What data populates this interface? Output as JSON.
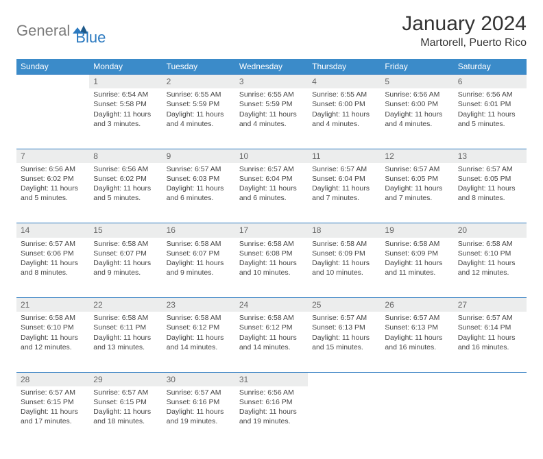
{
  "logo": {
    "text1": "General",
    "text2": "Blue"
  },
  "title": "January 2024",
  "location": "Martorell, Puerto Rico",
  "colors": {
    "header_bg": "#3b8bc9",
    "accent_line": "#2c7ac0",
    "daynum_bg": "#eceded",
    "text": "#444444",
    "logo_gray": "#7a7a7a",
    "logo_blue": "#2c7ac0"
  },
  "day_headers": [
    "Sunday",
    "Monday",
    "Tuesday",
    "Wednesday",
    "Thursday",
    "Friday",
    "Saturday"
  ],
  "days": {
    "1": {
      "sunrise": "6:54 AM",
      "sunset": "5:58 PM",
      "daylight": "11 hours and 3 minutes."
    },
    "2": {
      "sunrise": "6:55 AM",
      "sunset": "5:59 PM",
      "daylight": "11 hours and 4 minutes."
    },
    "3": {
      "sunrise": "6:55 AM",
      "sunset": "5:59 PM",
      "daylight": "11 hours and 4 minutes."
    },
    "4": {
      "sunrise": "6:55 AM",
      "sunset": "6:00 PM",
      "daylight": "11 hours and 4 minutes."
    },
    "5": {
      "sunrise": "6:56 AM",
      "sunset": "6:00 PM",
      "daylight": "11 hours and 4 minutes."
    },
    "6": {
      "sunrise": "6:56 AM",
      "sunset": "6:01 PM",
      "daylight": "11 hours and 5 minutes."
    },
    "7": {
      "sunrise": "6:56 AM",
      "sunset": "6:02 PM",
      "daylight": "11 hours and 5 minutes."
    },
    "8": {
      "sunrise": "6:56 AM",
      "sunset": "6:02 PM",
      "daylight": "11 hours and 5 minutes."
    },
    "9": {
      "sunrise": "6:57 AM",
      "sunset": "6:03 PM",
      "daylight": "11 hours and 6 minutes."
    },
    "10": {
      "sunrise": "6:57 AM",
      "sunset": "6:04 PM",
      "daylight": "11 hours and 6 minutes."
    },
    "11": {
      "sunrise": "6:57 AM",
      "sunset": "6:04 PM",
      "daylight": "11 hours and 7 minutes."
    },
    "12": {
      "sunrise": "6:57 AM",
      "sunset": "6:05 PM",
      "daylight": "11 hours and 7 minutes."
    },
    "13": {
      "sunrise": "6:57 AM",
      "sunset": "6:05 PM",
      "daylight": "11 hours and 8 minutes."
    },
    "14": {
      "sunrise": "6:57 AM",
      "sunset": "6:06 PM",
      "daylight": "11 hours and 8 minutes."
    },
    "15": {
      "sunrise": "6:58 AM",
      "sunset": "6:07 PM",
      "daylight": "11 hours and 9 minutes."
    },
    "16": {
      "sunrise": "6:58 AM",
      "sunset": "6:07 PM",
      "daylight": "11 hours and 9 minutes."
    },
    "17": {
      "sunrise": "6:58 AM",
      "sunset": "6:08 PM",
      "daylight": "11 hours and 10 minutes."
    },
    "18": {
      "sunrise": "6:58 AM",
      "sunset": "6:09 PM",
      "daylight": "11 hours and 10 minutes."
    },
    "19": {
      "sunrise": "6:58 AM",
      "sunset": "6:09 PM",
      "daylight": "11 hours and 11 minutes."
    },
    "20": {
      "sunrise": "6:58 AM",
      "sunset": "6:10 PM",
      "daylight": "11 hours and 12 minutes."
    },
    "21": {
      "sunrise": "6:58 AM",
      "sunset": "6:10 PM",
      "daylight": "11 hours and 12 minutes."
    },
    "22": {
      "sunrise": "6:58 AM",
      "sunset": "6:11 PM",
      "daylight": "11 hours and 13 minutes."
    },
    "23": {
      "sunrise": "6:58 AM",
      "sunset": "6:12 PM",
      "daylight": "11 hours and 14 minutes."
    },
    "24": {
      "sunrise": "6:58 AM",
      "sunset": "6:12 PM",
      "daylight": "11 hours and 14 minutes."
    },
    "25": {
      "sunrise": "6:57 AM",
      "sunset": "6:13 PM",
      "daylight": "11 hours and 15 minutes."
    },
    "26": {
      "sunrise": "6:57 AM",
      "sunset": "6:13 PM",
      "daylight": "11 hours and 16 minutes."
    },
    "27": {
      "sunrise": "6:57 AM",
      "sunset": "6:14 PM",
      "daylight": "11 hours and 16 minutes."
    },
    "28": {
      "sunrise": "6:57 AM",
      "sunset": "6:15 PM",
      "daylight": "11 hours and 17 minutes."
    },
    "29": {
      "sunrise": "6:57 AM",
      "sunset": "6:15 PM",
      "daylight": "11 hours and 18 minutes."
    },
    "30": {
      "sunrise": "6:57 AM",
      "sunset": "6:16 PM",
      "daylight": "11 hours and 19 minutes."
    },
    "31": {
      "sunrise": "6:56 AM",
      "sunset": "6:16 PM",
      "daylight": "11 hours and 19 minutes."
    }
  },
  "labels": {
    "sunrise": "Sunrise:",
    "sunset": "Sunset:",
    "daylight": "Daylight:"
  },
  "weeks": [
    [
      null,
      1,
      2,
      3,
      4,
      5,
      6
    ],
    [
      7,
      8,
      9,
      10,
      11,
      12,
      13
    ],
    [
      14,
      15,
      16,
      17,
      18,
      19,
      20
    ],
    [
      21,
      22,
      23,
      24,
      25,
      26,
      27
    ],
    [
      28,
      29,
      30,
      31,
      null,
      null,
      null
    ]
  ]
}
